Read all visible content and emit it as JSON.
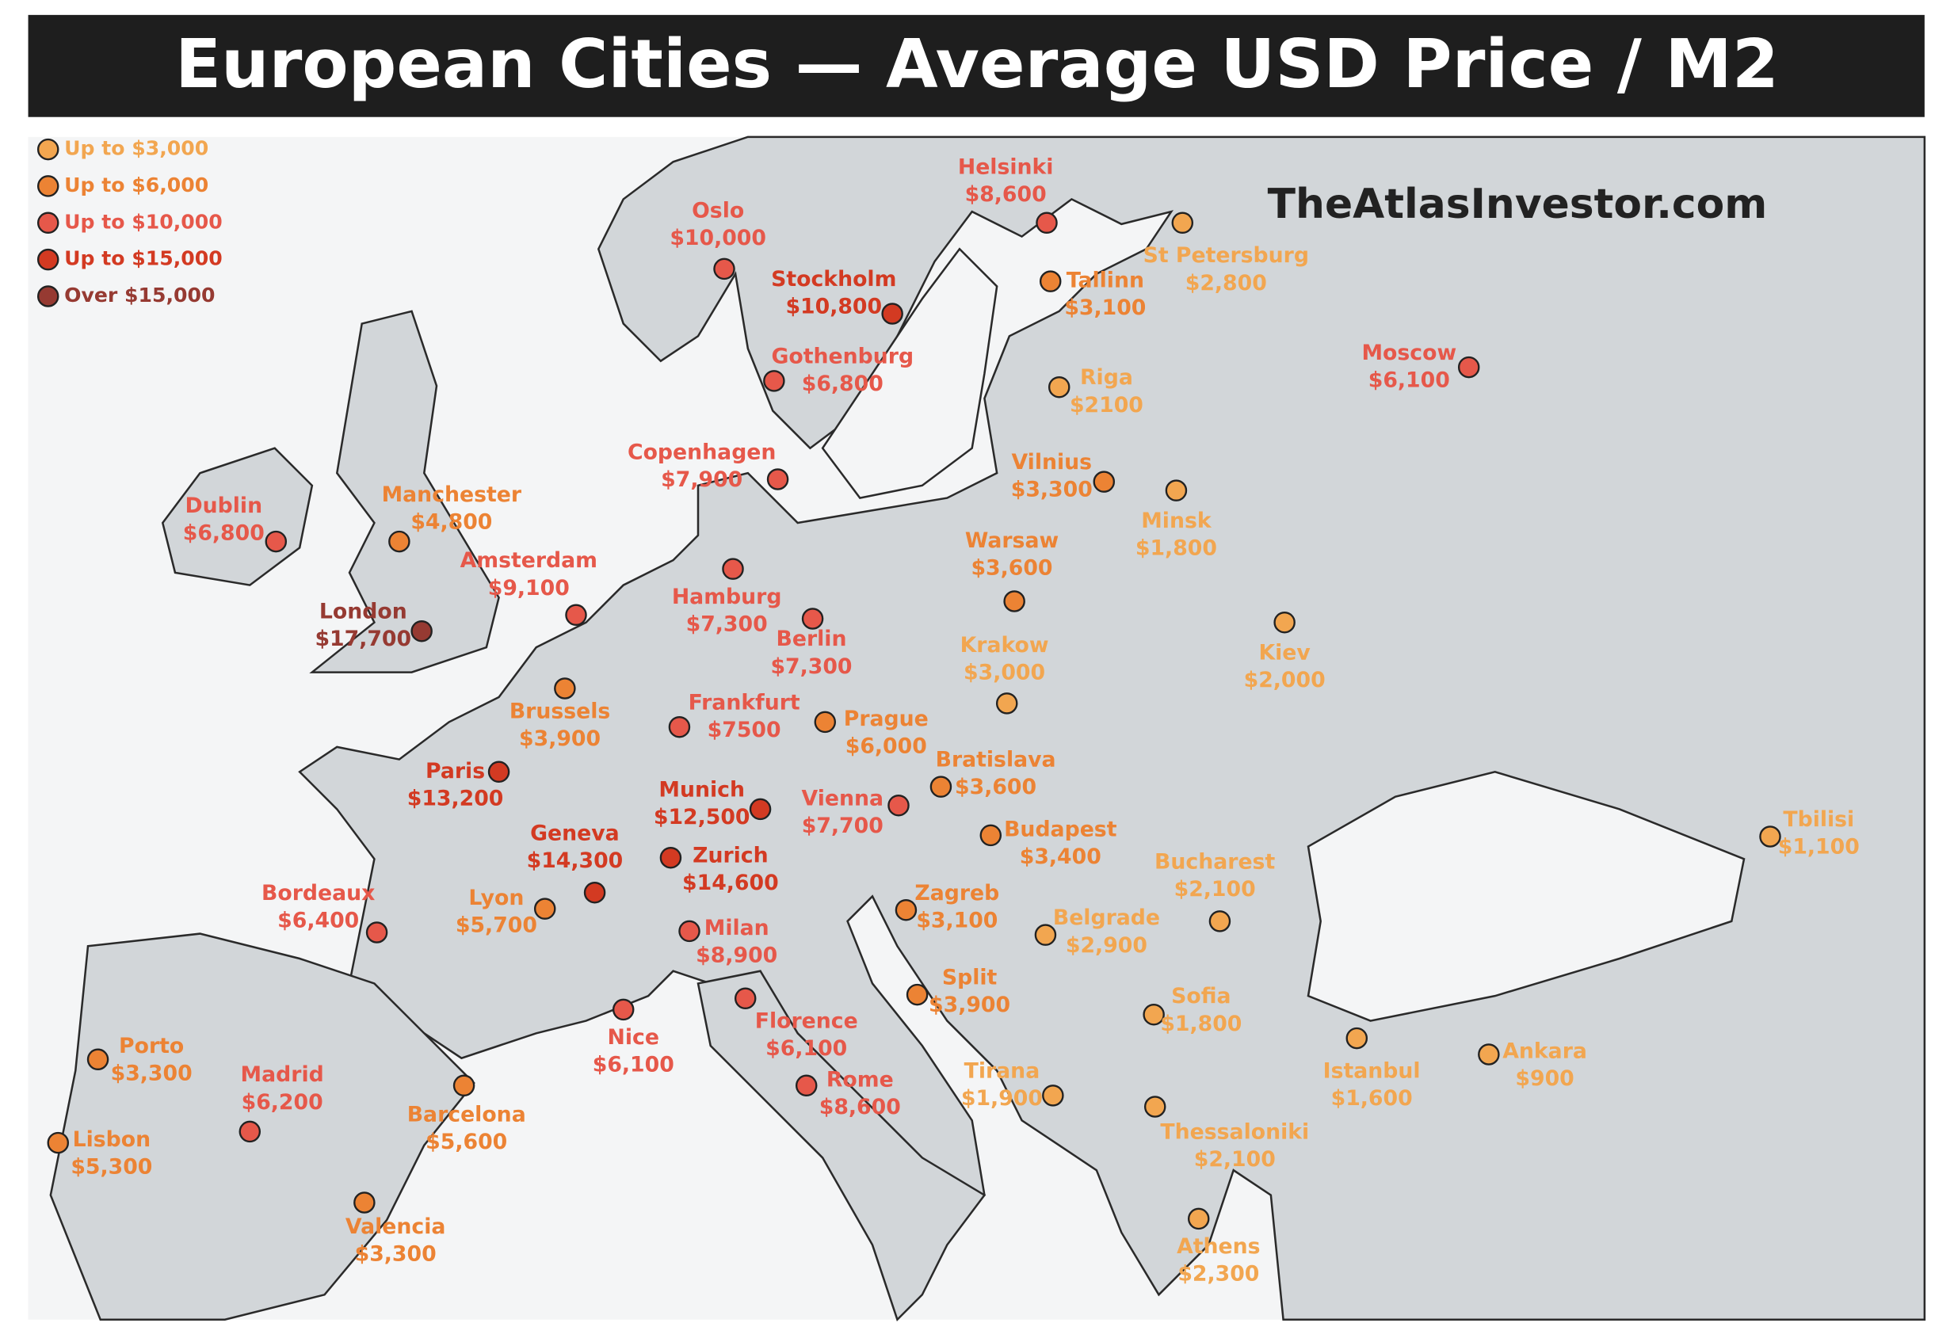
{
  "header": {
    "title": "European Cities — Average USD Price / M2"
  },
  "watermark": "TheAtlasInvestor.com",
  "legend": [
    {
      "label": "Up to $3,000",
      "color": "#f2a650"
    },
    {
      "label": "Up to $6,000",
      "color": "#ec8334"
    },
    {
      "label": "Up to $10,000",
      "color": "#e6584a"
    },
    {
      "label": "Up to $15,000",
      "color": "#d33a22"
    },
    {
      "label": "Over $15,000",
      "color": "#963a32"
    }
  ],
  "cities": [
    {
      "name": "Helsinki",
      "price": "$8,600"
    },
    {
      "name": "Oslo",
      "price": "$10,000"
    },
    {
      "name": "Stockholm",
      "price": "$10,800"
    },
    {
      "name": "St Petersburg",
      "price": "$2,800"
    },
    {
      "name": "Tallinn",
      "price": "$3,100"
    },
    {
      "name": "Gothenburg",
      "price": "$6,800"
    },
    {
      "name": "Riga",
      "price": "$2100"
    },
    {
      "name": "Moscow",
      "price": "$6,100"
    },
    {
      "name": "Copenhagen",
      "price": "$7,900"
    },
    {
      "name": "Vilnius",
      "price": "$3,300"
    },
    {
      "name": "Minsk",
      "price": "$1,800"
    },
    {
      "name": "Dublin",
      "price": "$6,800"
    },
    {
      "name": "Manchester",
      "price": "$4,800"
    },
    {
      "name": "Amsterdam",
      "price": "$9,100"
    },
    {
      "name": "Hamburg",
      "price": "$7,300"
    },
    {
      "name": "Warsaw",
      "price": "$3,600"
    },
    {
      "name": "London",
      "price": "$17,700"
    },
    {
      "name": "Berlin",
      "price": "$7,300"
    },
    {
      "name": "Kiev",
      "price": "$2,000"
    },
    {
      "name": "Krakow",
      "price": "$3,000"
    },
    {
      "name": "Brussels",
      "price": "$3,900"
    },
    {
      "name": "Frankfurt",
      "price": "$7500"
    },
    {
      "name": "Prague",
      "price": "$6,000"
    },
    {
      "name": "Paris",
      "price": "$13,200"
    },
    {
      "name": "Bratislava",
      "price": "$3,600"
    },
    {
      "name": "Munich",
      "price": "$12,500"
    },
    {
      "name": "Vienna",
      "price": "$7,700"
    },
    {
      "name": "Budapest",
      "price": "$3,400"
    },
    {
      "name": "Geneva",
      "price": "$14,300"
    },
    {
      "name": "Zurich",
      "price": "$14,600"
    },
    {
      "name": "Tbilisi",
      "price": "$1,100"
    },
    {
      "name": "Bucharest",
      "price": "$2,100"
    },
    {
      "name": "Bordeaux",
      "price": "$6,400"
    },
    {
      "name": "Lyon",
      "price": "$5,700"
    },
    {
      "name": "Zagreb",
      "price": "$3,100"
    },
    {
      "name": "Milan",
      "price": "$8,900"
    },
    {
      "name": "Belgrade",
      "price": "$2,900"
    },
    {
      "name": "Split",
      "price": "$3,900"
    },
    {
      "name": "Nice",
      "price": "$6,100"
    },
    {
      "name": "Florence",
      "price": "$6,100"
    },
    {
      "name": "Sofia",
      "price": "$1,800"
    },
    {
      "name": "Porto",
      "price": "$3,300"
    },
    {
      "name": "Istanbul",
      "price": "$1,600"
    },
    {
      "name": "Ankara",
      "price": "$900"
    },
    {
      "name": "Madrid",
      "price": "$6,200"
    },
    {
      "name": "Rome",
      "price": "$8,600"
    },
    {
      "name": "Tirana",
      "price": "$1,900"
    },
    {
      "name": "Barcelona",
      "price": "$5,600"
    },
    {
      "name": "Thessaloniki",
      "price": "$2,100"
    },
    {
      "name": "Lisbon",
      "price": "$5,300"
    },
    {
      "name": "Valencia",
      "price": "$3,300"
    },
    {
      "name": "Athens",
      "price": "$2,300"
    }
  ]
}
